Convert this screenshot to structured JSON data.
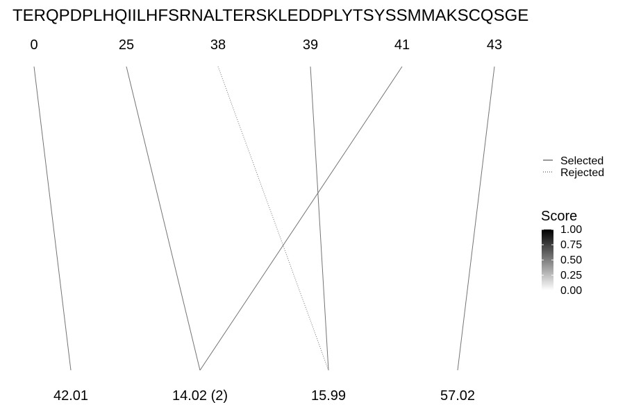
{
  "chart_data": {
    "type": "line",
    "title": "TERQPDPLHQIILHFSRNALTERSKLEDDPLYTSYSSMMAKSCQSGE",
    "top_labels": [
      "0",
      "25",
      "38",
      "39",
      "41",
      "43"
    ],
    "bottom_labels": [
      "42.01",
      "14.02 (2)",
      "15.99",
      "57.02"
    ],
    "connections": [
      {
        "from": "0",
        "to": "42.01",
        "status": "Selected",
        "score": 0.55
      },
      {
        "from": "25",
        "to": "14.02 (2)",
        "status": "Selected",
        "score": 0.55
      },
      {
        "from": "38",
        "to": "15.99",
        "status": "Rejected",
        "score": 0.55
      },
      {
        "from": "39",
        "to": "15.99",
        "status": "Selected",
        "score": 0.55
      },
      {
        "from": "41",
        "to": "14.02 (2)",
        "status": "Selected",
        "score": 0.55
      },
      {
        "from": "43",
        "to": "57.02",
        "status": "Selected",
        "score": 0.55
      }
    ],
    "legend": {
      "items": [
        {
          "label": "Selected",
          "style": "solid"
        },
        {
          "label": "Rejected",
          "style": "dotted"
        }
      ],
      "placement": "right"
    },
    "colorbar": {
      "title": "Score",
      "ticks": [
        "1.00",
        "0.75",
        "0.50",
        "0.25",
        "0.00"
      ],
      "range": [
        0,
        1
      ],
      "low_color": "#ffffff",
      "high_color": "#000000"
    }
  }
}
